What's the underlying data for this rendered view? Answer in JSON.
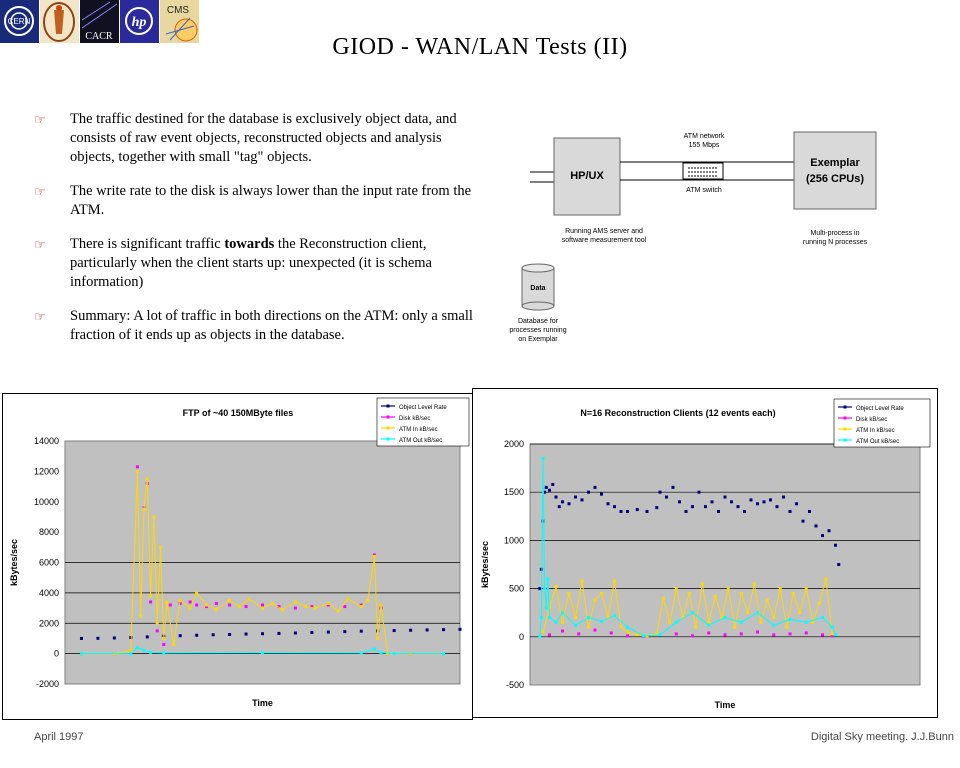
{
  "logos": [
    {
      "name": "cern-logo",
      "text": "CERN"
    },
    {
      "name": "caltech-logo",
      "text": ""
    },
    {
      "name": "cacr-logo",
      "text": "CACR"
    },
    {
      "name": "hp-logo",
      "text": "hp"
    },
    {
      "name": "cms-logo",
      "text": "CMS"
    }
  ],
  "title": "GIOD - WAN/LAN Tests (II)",
  "bullets": [
    {
      "before": "The traffic destined for the database is exclusively object data, and consists of raw event objects, reconstructed objects and analysis objects, together with small \"tag\" objects.",
      "bold": "",
      "after": ""
    },
    {
      "before": "The write rate to the disk is always lower than the input rate from the ATM.",
      "bold": "",
      "after": ""
    },
    {
      "before": "There is significant traffic ",
      "bold": "towards",
      "after": " the Reconstruction client, particularly when the client starts up: unexpected (it is schema information)"
    },
    {
      "before": "Summary: A lot of traffic in both directions on the ATM: only a small fraction of it ends up as objects in the database.",
      "bold": "",
      "after": ""
    }
  ],
  "diagram": {
    "hpux": "HP/UX",
    "exemplar_line1": "Exemplar",
    "exemplar_line2": "(256 CPUs)",
    "atm_network_line1": "ATM network",
    "atm_network_line2": "155 Mbps",
    "atm_switch": "ATM switch",
    "hpux_caption_line1": "Running AMS server and",
    "hpux_caption_line2": "software measurement tool",
    "exemplar_caption_line1": "Multi-process in",
    "exemplar_caption_line2": "running N processes",
    "data": "Data",
    "db_caption_line1": "Database for",
    "db_caption_line2": "processes running",
    "db_caption_line3": "on Exemplar"
  },
  "chart_data": [
    {
      "type": "line",
      "title": "FTP of ~40 150MByte files",
      "xlabel": "Time",
      "ylabel": "kBytes/sec",
      "ylim": [
        -2000,
        14000
      ],
      "yticks": [
        "14000",
        "12000",
        "10000",
        "8000",
        "6000",
        "4000",
        "2000",
        "0",
        "-2000"
      ],
      "gridlines": [
        0,
        2000,
        4000,
        6000
      ],
      "legend_position": "top-right",
      "series": [
        {
          "name": "Object Level Rate",
          "color": "#000080",
          "style": "dots",
          "x": [
            0.5,
            1,
            1.5,
            2,
            2.5,
            3,
            3.5,
            4,
            4.5,
            5,
            5.5,
            6,
            6.5,
            7,
            7.5,
            8,
            8.5,
            9,
            9.5,
            10,
            10.5,
            11,
            11.5,
            12
          ],
          "y": [
            1000,
            1010,
            1030,
            1060,
            1100,
            1150,
            1180,
            1210,
            1240,
            1260,
            1290,
            1310,
            1330,
            1360,
            1390,
            1420,
            1450,
            1480,
            1500,
            1520,
            1540,
            1560,
            1580,
            1600
          ]
        },
        {
          "name": "Disk kB/sec",
          "color": "#ff00ff",
          "style": "dots",
          "x": [
            0.5,
            1.5,
            2.2,
            2.4,
            2.5,
            2.6,
            2.8,
            3.0,
            3.2,
            3.5,
            3.8,
            4.0,
            4.3,
            4.6,
            5.0,
            5.5,
            6.0,
            6.5,
            7.0,
            7.5,
            8.0,
            8.5,
            9.0,
            9.4,
            9.6,
            9.8,
            10.5,
            11.5
          ],
          "y": [
            0,
            0,
            12300,
            9600,
            11200,
            3400,
            1500,
            600,
            3200,
            3300,
            3400,
            3200,
            3100,
            3300,
            3200,
            3100,
            3200,
            3100,
            3000,
            3100,
            3200,
            3100,
            3200,
            6500,
            3000,
            0,
            0,
            0
          ]
        },
        {
          "name": "ATM In kB/sec",
          "color": "#ffd700",
          "style": "line",
          "x": [
            0.5,
            1.5,
            2.0,
            2.2,
            2.3,
            2.4,
            2.5,
            2.6,
            2.7,
            2.8,
            2.9,
            3.0,
            3.1,
            3.3,
            3.5,
            3.8,
            4.0,
            4.3,
            4.6,
            5.0,
            5.3,
            5.6,
            6.0,
            6.3,
            6.6,
            7.0,
            7.3,
            7.6,
            8.0,
            8.3,
            8.6,
            9.0,
            9.2,
            9.4,
            9.5,
            9.6,
            9.8,
            10.5,
            11.5
          ],
          "y": [
            0,
            0,
            200,
            12000,
            2500,
            9500,
            11500,
            3800,
            9000,
            2000,
            7000,
            1000,
            3400,
            600,
            3500,
            3000,
            4000,
            3200,
            2900,
            3500,
            3100,
            3600,
            3000,
            3300,
            2900,
            3400,
            3100,
            3000,
            3300,
            2800,
            3600,
            3100,
            3500,
            6400,
            1000,
            3200,
            0,
            0,
            0
          ]
        },
        {
          "name": "ATM Out kB/sec",
          "color": "#00ffff",
          "style": "line",
          "x": [
            0.5,
            2.0,
            2.2,
            2.4,
            2.6,
            3.0,
            6.0,
            9.0,
            9.4,
            9.6,
            10,
            11.5
          ],
          "y": [
            0,
            0,
            400,
            200,
            80,
            40,
            60,
            40,
            300,
            60,
            0,
            0
          ]
        }
      ]
    },
    {
      "type": "line",
      "title": "N=16 Reconstruction Clients (12 events each)",
      "xlabel": "Time",
      "ylabel": "kBytes/sec",
      "ylim": [
        -500,
        2000
      ],
      "yticks": [
        "2000",
        "1500",
        "1000",
        "500",
        "0",
        "-500"
      ],
      "gridlines": [
        0,
        500,
        1000,
        1500,
        2000
      ],
      "legend_position": "top-right",
      "series": [
        {
          "name": "Object Level Rate",
          "color": "#000080",
          "style": "dots",
          "x": [
            0.3,
            0.35,
            0.4,
            0.45,
            0.5,
            0.6,
            0.7,
            0.8,
            0.9,
            1.0,
            1.2,
            1.4,
            1.6,
            1.8,
            2.0,
            2.2,
            2.4,
            2.6,
            2.8,
            3.0,
            3.3,
            3.6,
            3.9,
            4.0,
            4.2,
            4.4,
            4.6,
            4.8,
            5.0,
            5.2,
            5.4,
            5.6,
            5.8,
            6.0,
            6.2,
            6.4,
            6.6,
            6.8,
            7.0,
            7.2,
            7.4,
            7.6,
            7.8,
            8.0,
            8.2,
            8.4,
            8.6,
            8.8,
            9.0,
            9.2,
            9.4,
            9.5
          ],
          "y": [
            500,
            700,
            1200,
            1500,
            1550,
            1520,
            1580,
            1450,
            1350,
            1400,
            1380,
            1450,
            1420,
            1500,
            1550,
            1480,
            1380,
            1350,
            1300,
            1300,
            1320,
            1300,
            1340,
            1500,
            1450,
            1550,
            1400,
            1300,
            1350,
            1500,
            1350,
            1400,
            1300,
            1450,
            1400,
            1350,
            1300,
            1420,
            1380,
            1400,
            1420,
            1350,
            1450,
            1300,
            1380,
            1200,
            1300,
            1150,
            1050,
            1100,
            950,
            750
          ]
        },
        {
          "name": "Disk kB/sec",
          "color": "#ff00ff",
          "style": "dots",
          "x": [
            0.4,
            0.6,
            1,
            1.5,
            2,
            2.5,
            3,
            3.5,
            4,
            4.5,
            5,
            5.5,
            6,
            6.5,
            7,
            7.5,
            8,
            8.5,
            9,
            9.3
          ],
          "y": [
            50,
            20,
            60,
            30,
            70,
            40,
            10,
            5,
            20,
            30,
            10,
            40,
            20,
            30,
            50,
            20,
            30,
            40,
            20,
            10
          ]
        },
        {
          "name": "ATM In kB/sec",
          "color": "#ffd700",
          "style": "line",
          "x": [
            0.4,
            0.6,
            0.8,
            1.0,
            1.2,
            1.4,
            1.6,
            1.8,
            2.0,
            2.2,
            2.4,
            2.6,
            2.8,
            3.0,
            3.3,
            3.6,
            3.9,
            4.1,
            4.3,
            4.5,
            4.7,
            4.9,
            5.1,
            5.3,
            5.5,
            5.7,
            5.9,
            6.1,
            6.3,
            6.5,
            6.7,
            6.9,
            7.1,
            7.3,
            7.5,
            7.7,
            7.9,
            8.1,
            8.3,
            8.5,
            8.7,
            8.9,
            9.1,
            9.3
          ],
          "y": [
            50,
            300,
            520,
            150,
            450,
            200,
            580,
            100,
            380,
            450,
            200,
            580,
            100,
            50,
            20,
            10,
            30,
            400,
            150,
            500,
            200,
            450,
            100,
            550,
            150,
            420,
            200,
            500,
            100,
            450,
            250,
            550,
            150,
            380,
            200,
            500,
            100,
            450,
            250,
            500,
            150,
            350,
            600,
            30
          ]
        },
        {
          "name": "ATM Out kB/sec",
          "color": "#00ffff",
          "style": "line",
          "x": [
            0.3,
            0.35,
            0.4,
            0.45,
            0.5,
            0.55,
            0.6,
            0.8,
            1.0,
            1.4,
            1.8,
            2.2,
            2.6,
            3.0,
            3.5,
            4.0,
            4.5,
            5.0,
            5.5,
            6.0,
            6.5,
            7.0,
            7.5,
            8.0,
            8.5,
            9.0,
            9.3,
            9.4
          ],
          "y": [
            0,
            200,
            1850,
            500,
            300,
            600,
            200,
            150,
            250,
            120,
            200,
            160,
            220,
            100,
            10,
            20,
            150,
            250,
            120,
            200,
            150,
            250,
            120,
            180,
            150,
            200,
            100,
            20
          ]
        }
      ]
    }
  ],
  "footer": {
    "left": "April 1997",
    "right": "Digital Sky meeting. J.J.Bunn"
  }
}
